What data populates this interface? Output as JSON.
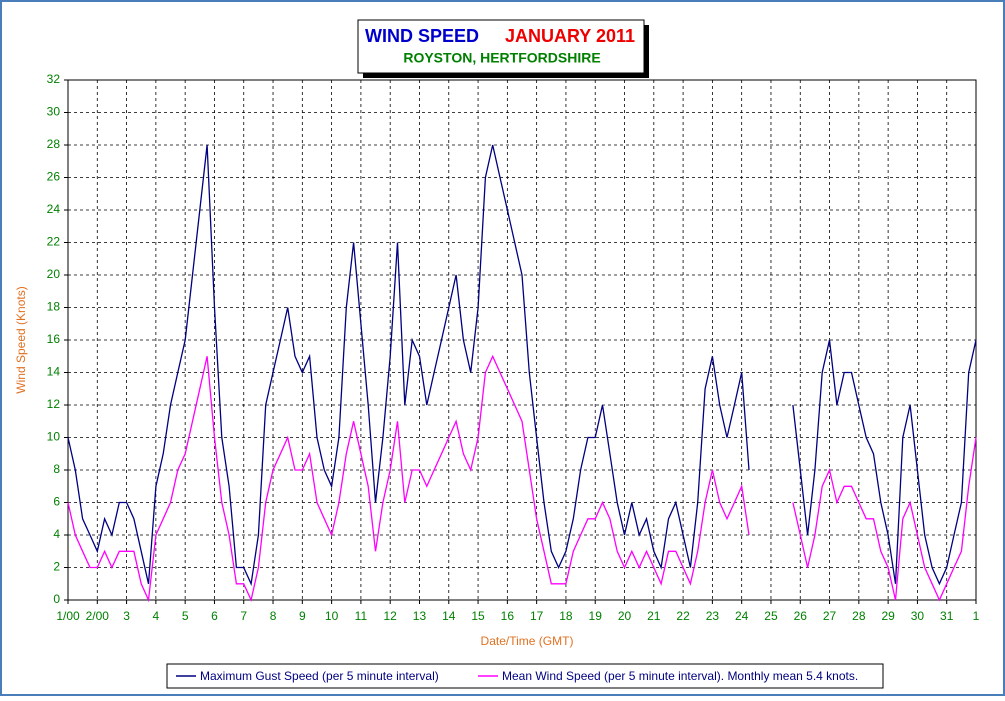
{
  "chart_data": {
    "type": "line",
    "title": "WIND SPEED",
    "title_date": "JANUARY 2011",
    "subtitle": "ROYSTON, HERTFORDSHIRE",
    "x_label": "Date/Time (GMT)",
    "y_label": "Wind Speed (Knots)",
    "grid": true,
    "legend": "bottom",
    "xlim": [
      1,
      32
    ],
    "ylim": [
      0,
      32
    ],
    "yticks": [
      0,
      2,
      4,
      6,
      8,
      10,
      12,
      14,
      16,
      18,
      20,
      22,
      24,
      26,
      28,
      30,
      32
    ],
    "xticks": [
      {
        "value": 1,
        "label": "1/00"
      },
      {
        "value": 2,
        "label": "2/00"
      },
      3,
      4,
      5,
      6,
      7,
      8,
      9,
      10,
      11,
      12,
      13,
      14,
      15,
      16,
      17,
      18,
      19,
      20,
      21,
      22,
      23,
      24,
      25,
      26,
      27,
      28,
      29,
      30,
      31,
      {
        "value": 32,
        "label": "1"
      }
    ],
    "x": [
      1,
      1.25,
      1.5,
      1.75,
      2,
      2.25,
      2.5,
      2.75,
      3,
      3.25,
      3.5,
      3.75,
      4,
      4.25,
      4.5,
      4.75,
      5,
      5.25,
      5.5,
      5.75,
      6,
      6.25,
      6.5,
      6.75,
      7,
      7.25,
      7.5,
      7.75,
      8,
      8.25,
      8.5,
      8.75,
      9,
      9.25,
      9.5,
      9.75,
      10,
      10.25,
      10.5,
      10.75,
      11,
      11.25,
      11.5,
      11.75,
      12,
      12.25,
      12.5,
      12.75,
      13,
      13.25,
      13.5,
      13.75,
      14,
      14.25,
      14.5,
      14.75,
      15,
      15.25,
      15.5,
      15.75,
      16,
      16.25,
      16.5,
      16.75,
      17,
      17.25,
      17.5,
      17.75,
      18,
      18.25,
      18.5,
      18.75,
      19,
      19.25,
      19.5,
      19.75,
      20,
      20.25,
      20.5,
      20.75,
      21,
      21.25,
      21.5,
      21.75,
      22,
      22.25,
      22.5,
      22.75,
      23,
      23.25,
      23.5,
      23.75,
      24,
      24.25,
      24.5,
      24.75,
      25,
      25.25,
      25.5,
      25.75,
      26,
      26.25,
      26.5,
      26.75,
      27,
      27.25,
      27.5,
      27.75,
      28,
      28.25,
      28.5,
      28.75,
      29,
      29.25,
      29.5,
      29.75,
      30,
      30.25,
      30.5,
      30.75,
      31,
      31.25,
      31.5,
      31.75,
      32
    ],
    "series": [
      {
        "name": "Maximum Gust Speed (per 5 minute interval)",
        "color": "#000080",
        "values": [
          10,
          8,
          5,
          4,
          3,
          5,
          4,
          6,
          6,
          5,
          3,
          1,
          7,
          9,
          12,
          14,
          16,
          20,
          24,
          28,
          18,
          10,
          7,
          2,
          2,
          1,
          4,
          12,
          14,
          16,
          18,
          15,
          14,
          15,
          10,
          8,
          7,
          10,
          18,
          22,
          17,
          12,
          6,
          10,
          15,
          22,
          12,
          16,
          15,
          12,
          14,
          16,
          18,
          20,
          16,
          14,
          18,
          26,
          28,
          26,
          24,
          22,
          20,
          14,
          10,
          6,
          3,
          2,
          3,
          5,
          8,
          10,
          10,
          12,
          9,
          6,
          4,
          6,
          4,
          5,
          3,
          2,
          5,
          6,
          4,
          2,
          6,
          13,
          15,
          12,
          10,
          12,
          14,
          8,
          null,
          null,
          null,
          null,
          null,
          12,
          8,
          4,
          8,
          14,
          16,
          12,
          14,
          14,
          12,
          10,
          9,
          6,
          4,
          1,
          10,
          12,
          8,
          4,
          2,
          1,
          2,
          4,
          6,
          14,
          16
        ]
      },
      {
        "name": "Mean Wind Speed (per 5 minute interval). Monthly mean 5.4 knots.",
        "color": "#ff00ff",
        "values": [
          6,
          4,
          3,
          2,
          2,
          3,
          2,
          3,
          3,
          3,
          1,
          0,
          4,
          5,
          6,
          8,
          9,
          11,
          13,
          15,
          10,
          6,
          4,
          1,
          1,
          0,
          2,
          6,
          8,
          9,
          10,
          8,
          8,
          9,
          6,
          5,
          4,
          6,
          9,
          11,
          9,
          7,
          3,
          6,
          8,
          11,
          6,
          8,
          8,
          7,
          8,
          9,
          10,
          11,
          9,
          8,
          10,
          14,
          15,
          14,
          13,
          12,
          11,
          8,
          5,
          3,
          1,
          1,
          1,
          3,
          4,
          5,
          5,
          6,
          5,
          3,
          2,
          3,
          2,
          3,
          2,
          1,
          3,
          3,
          2,
          1,
          3,
          6,
          8,
          6,
          5,
          6,
          7,
          4,
          null,
          null,
          null,
          null,
          null,
          6,
          4,
          2,
          4,
          7,
          8,
          6,
          7,
          7,
          6,
          5,
          5,
          3,
          2,
          0,
          5,
          6,
          4,
          2,
          1,
          0,
          1,
          2,
          3,
          7,
          10
        ]
      }
    ]
  }
}
